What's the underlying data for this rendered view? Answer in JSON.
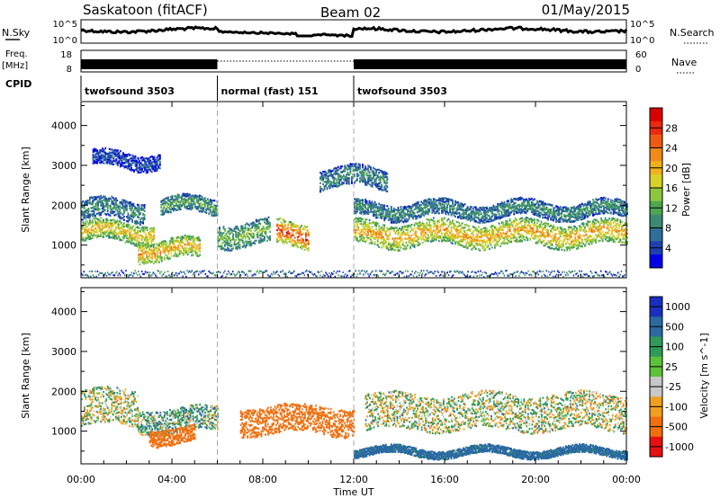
{
  "header": {
    "station": "Saskatoon (fitACF)",
    "beam": "Beam 02",
    "date": "01/May/2015"
  },
  "summary_panels": {
    "nsky_label": "N.Sky",
    "nsky_ticks": [
      "10^5",
      "10^0"
    ],
    "nsearch_label": "N.Search",
    "nsearch_ticks": [
      "10^5",
      "10^0"
    ],
    "freq_label_line1": "Freq.",
    "freq_label_line2": "[MHz]",
    "freq_ticks": [
      "18",
      "8"
    ],
    "nave_label": "Nave",
    "nave_ticks": [
      "60",
      "0"
    ],
    "cpid_label": "CPID"
  },
  "cpid_segments": [
    {
      "label": "twofsound 3503",
      "start_hour": 0,
      "end_hour": 6
    },
    {
      "label": "normal (fast) 151",
      "start_hour": 6,
      "end_hour": 12
    },
    {
      "label": "twofsound 3503",
      "start_hour": 12,
      "end_hour": 24
    }
  ],
  "chart_data": [
    {
      "type": "heatmap",
      "panel": "power",
      "ylabel": "Slant Range [km]",
      "ylim": [
        180,
        4600
      ],
      "yticks": [
        1000,
        2000,
        3000,
        4000
      ],
      "xlim": [
        0,
        24
      ],
      "colorbar": {
        "label": "Power [dB]",
        "range": [
          0,
          32
        ],
        "tick_labels": [
          "28",
          "24",
          "20",
          "16",
          "12",
          "8",
          "4"
        ],
        "tick_values": [
          28,
          24,
          20,
          16,
          12,
          8,
          4
        ],
        "colors": [
          "#0000e6",
          "#1f3fb0",
          "#2f6f9a",
          "#3a8a72",
          "#4da650",
          "#8cc63e",
          "#d6d22a",
          "#f0b11e",
          "#f08a18",
          "#ee5a14",
          "#e82a10",
          "#d80000"
        ]
      },
      "echo_bands": [
        {
          "t0": 0.0,
          "t1": 3.2,
          "r_center": 1350,
          "width": 500,
          "mean_db": 20
        },
        {
          "t0": 0.0,
          "t1": 2.8,
          "r_center": 1900,
          "width": 500,
          "mean_db": 10
        },
        {
          "t0": 2.5,
          "t1": 5.2,
          "r_center": 900,
          "width": 500,
          "mean_db": 22
        },
        {
          "t0": 3.5,
          "t1": 6.0,
          "r_center": 2000,
          "width": 400,
          "mean_db": 12
        },
        {
          "t0": 6.0,
          "t1": 8.3,
          "r_center": 1300,
          "width": 600,
          "mean_db": 14
        },
        {
          "t0": 8.6,
          "t1": 10.0,
          "r_center": 1300,
          "width": 600,
          "mean_db": 28
        },
        {
          "t0": 12.0,
          "t1": 24.0,
          "r_center": 1300,
          "width": 600,
          "mean_db": 22
        },
        {
          "t0": 12.0,
          "t1": 24.0,
          "r_center": 1900,
          "width": 400,
          "mean_db": 10
        },
        {
          "t0": 10.5,
          "t1": 13.5,
          "r_center": 2700,
          "width": 500,
          "mean_db": 10
        },
        {
          "t0": 0.5,
          "t1": 3.5,
          "r_center": 3150,
          "width": 400,
          "mean_db": 5
        }
      ]
    },
    {
      "type": "heatmap",
      "panel": "velocity",
      "ylabel": "Slant Range [km]",
      "xlabel": "Time UT",
      "ylim": [
        180,
        4600
      ],
      "yticks": [
        1000,
        2000,
        3000,
        4000
      ],
      "xlim": [
        0,
        24
      ],
      "xtick_labels": [
        "00:00",
        "04:00",
        "08:00",
        "12:00",
        "16:00",
        "20:00",
        "00:00"
      ],
      "xtick_values": [
        0,
        4,
        8,
        12,
        16,
        20,
        24
      ],
      "colorbar": {
        "label": "Velocity [m s^-1]",
        "tick_labels": [
          "1000",
          "500",
          "100",
          "25",
          "-25",
          "-100",
          "-500",
          "-1000"
        ],
        "colors": [
          "#1a2fbf",
          "#2a6aa0",
          "#2f9a5a",
          "#5cc23a",
          "#c8c8c8",
          "#f0a020",
          "#f07010",
          "#e81010"
        ]
      },
      "echo_bands": [
        {
          "t0": 0.0,
          "t1": 2.5,
          "r_center": 1600,
          "width": 900,
          "mean_v": 0
        },
        {
          "t0": 2.5,
          "t1": 6.0,
          "r_center": 1300,
          "width": 600,
          "mean_v": 50
        },
        {
          "t0": 3.0,
          "t1": 5.0,
          "r_center": 900,
          "width": 400,
          "mean_v": -300
        },
        {
          "t0": 7.0,
          "t1": 12.0,
          "r_center": 1300,
          "width": 700,
          "mean_v": -250
        },
        {
          "t0": 12.5,
          "t1": 24.0,
          "r_center": 1500,
          "width": 900,
          "mean_v": 0
        },
        {
          "t0": 12.0,
          "t1": 24.0,
          "r_center": 500,
          "width": 200,
          "mean_v": 200
        }
      ]
    }
  ],
  "time_axis": {
    "xlabel": "Time UT",
    "tick_labels": [
      "00:00",
      "04:00",
      "08:00",
      "12:00",
      "16:00",
      "20:00",
      "00:00"
    ],
    "tick_values": [
      0,
      4,
      8,
      12,
      16,
      20,
      24
    ]
  }
}
